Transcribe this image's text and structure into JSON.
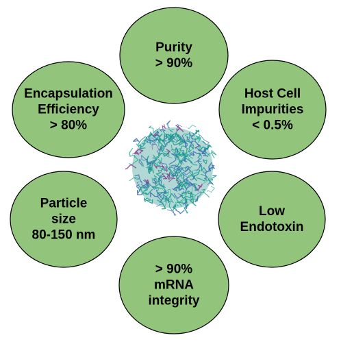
{
  "diagram": {
    "node_fill": "#92c47c",
    "node_stroke": "#000000",
    "text_color": "#000000",
    "center_image": {
      "icon": "lipid-nanoparticle-molecular-model",
      "colors": [
        "#1a9a8c",
        "#3a6fb0",
        "#8b3a8f",
        "#2bb5a0"
      ]
    },
    "nodes": [
      {
        "id": "purity",
        "lines": [
          "Purity",
          "> 90%"
        ]
      },
      {
        "id": "host-cell",
        "lines": [
          "Host Cell",
          "Impurities",
          "< 0.5%"
        ]
      },
      {
        "id": "endotoxin",
        "lines": [
          "Low",
          "Endotoxin"
        ]
      },
      {
        "id": "mrna",
        "lines": [
          "> 90%",
          "mRNA",
          "integrity"
        ]
      },
      {
        "id": "particle-size",
        "lines": [
          "Particle",
          "size",
          "80-150 nm"
        ]
      },
      {
        "id": "encapsulation",
        "lines": [
          "Encapsulation",
          "Efficiency",
          "> 80%"
        ]
      }
    ]
  }
}
